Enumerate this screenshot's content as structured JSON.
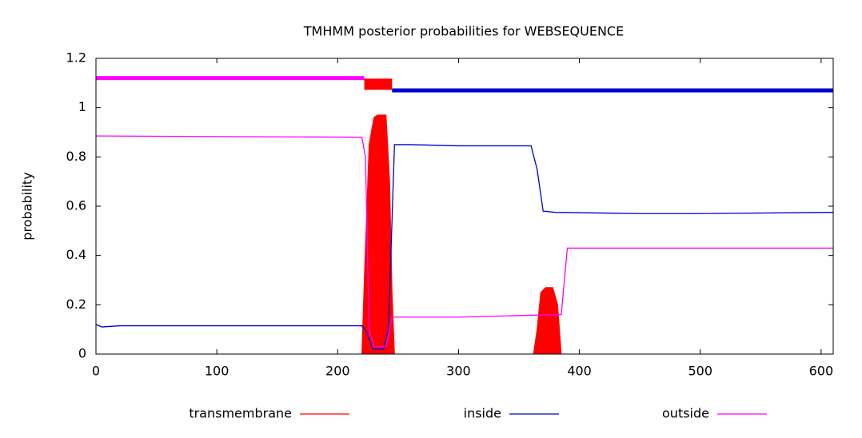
{
  "chart_data": {
    "type": "line",
    "title": "TMHMM posterior probabilities for WEBSEQUENCE",
    "y_label": "probability",
    "xlim": [
      0,
      610
    ],
    "ylim": [
      0,
      1.2
    ],
    "xticks": [
      0,
      100,
      200,
      300,
      400,
      500,
      600
    ],
    "yticks": [
      0,
      0.2,
      0.4,
      0.6,
      0.8,
      1,
      1.2
    ],
    "grid": false,
    "legend": "bottom",
    "series": [
      {
        "name": "transmembrane",
        "color": "#ff0000",
        "fill": true,
        "x": [
          0,
          220,
          222,
          226,
          230,
          233,
          240,
          243,
          245,
          247,
          362,
          365,
          368,
          372,
          378,
          382,
          385,
          610
        ],
        "values": [
          0,
          0,
          0.3,
          0.85,
          0.96,
          0.97,
          0.97,
          0.7,
          0.25,
          0,
          0,
          0.1,
          0.25,
          0.27,
          0.27,
          0.2,
          0,
          0
        ]
      },
      {
        "name": "inside",
        "color": "#0000cc",
        "fill": false,
        "x": [
          0,
          5,
          20,
          220,
          224,
          229,
          238,
          242,
          247,
          260,
          300,
          360,
          365,
          370,
          380,
          450,
          500,
          610
        ],
        "values": [
          0.12,
          0.11,
          0.115,
          0.115,
          0.09,
          0.02,
          0.02,
          0.1,
          0.85,
          0.85,
          0.845,
          0.845,
          0.75,
          0.58,
          0.575,
          0.57,
          0.57,
          0.575
        ]
      },
      {
        "name": "outside",
        "color": "#ff00ff",
        "fill": false,
        "x": [
          0,
          220,
          223,
          226,
          230,
          240,
          245,
          300,
          380,
          385,
          390,
          610
        ],
        "values": [
          0.885,
          0.88,
          0.8,
          0.1,
          0.03,
          0.03,
          0.15,
          0.15,
          0.16,
          0.16,
          0.43,
          0.43
        ]
      }
    ],
    "topology": [
      {
        "start": 0,
        "end": 222,
        "level": 1.12,
        "color": "#ff00ff"
      },
      {
        "start": 222,
        "end": 245,
        "level": 1.095,
        "color": "#ff0000"
      },
      {
        "start": 245,
        "end": 610,
        "level": 1.07,
        "color": "#0000cc"
      }
    ]
  }
}
